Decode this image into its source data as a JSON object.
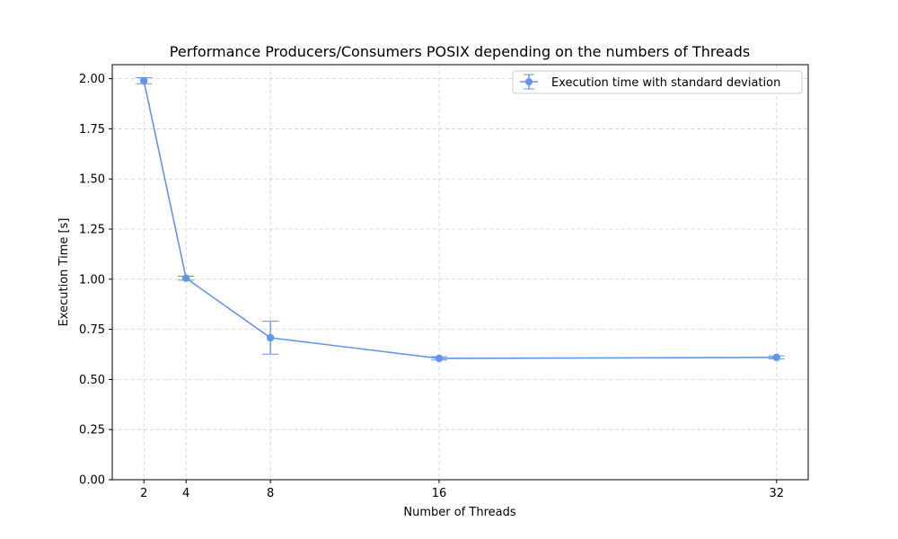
{
  "chart_data": {
    "type": "line",
    "title": "Performance Producers/Consumers POSIX depending on the numbers of Threads",
    "xlabel": "Number of Threads",
    "ylabel": "Execution Time [s]",
    "x": [
      2,
      4,
      8,
      16,
      32
    ],
    "xticks": [
      2,
      4,
      8,
      16,
      32
    ],
    "xtick_labels": [
      "2",
      "4",
      "8",
      "16",
      "32"
    ],
    "xlim": [
      0.5,
      33.5
    ],
    "ylim": [
      0,
      2.07
    ],
    "yticks": [
      0,
      0.25,
      0.5,
      0.75,
      1.0,
      1.25,
      1.5,
      1.75,
      2.0
    ],
    "ytick_labels": [
      "0.00",
      "0.25",
      "0.50",
      "0.75",
      "1.00",
      "1.25",
      "1.50",
      "1.75",
      "2.00"
    ],
    "series": [
      {
        "name": "Execution time with standard deviation",
        "values": [
          1.99,
          1.005,
          0.708,
          0.605,
          0.61
        ],
        "errors": [
          0.015,
          0.01,
          0.082,
          0.008,
          0.008
        ],
        "color": "#6495ED"
      }
    ],
    "grid": true,
    "legend_position": "top-right"
  }
}
